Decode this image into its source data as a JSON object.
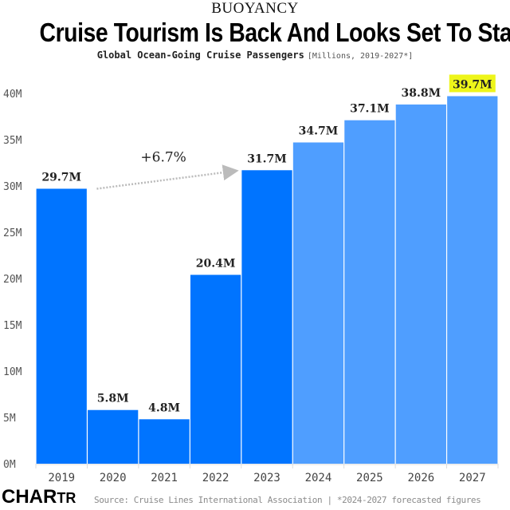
{
  "header": {
    "kicker": "BUOYANCY",
    "title": "Cruise Tourism Is Back And Looks Set To Stay",
    "subtitle_main": "Global Ocean-Going Cruise Passengers",
    "subtitle_unit": "[Millions, 2019-2027*]"
  },
  "chart_data": {
    "type": "bar",
    "title": "Cruise Tourism Is Back And Looks Set To Stay",
    "subtitle": "Global Ocean-Going Cruise Passengers [Millions, 2019-2027*]",
    "xlabel": "",
    "ylabel": "",
    "categories": [
      "2019",
      "2020",
      "2021",
      "2022",
      "2023",
      "2024",
      "2025",
      "2026",
      "2027"
    ],
    "values": [
      29.7,
      5.8,
      4.8,
      20.4,
      31.7,
      34.7,
      37.1,
      38.8,
      39.7
    ],
    "value_labels": [
      "29.7M",
      "5.8M",
      "4.8M",
      "20.4M",
      "31.7M",
      "34.7M",
      "37.1M",
      "38.8M",
      "39.7M"
    ],
    "forecast": [
      false,
      false,
      false,
      false,
      false,
      true,
      true,
      true,
      true
    ],
    "highlight_index": 8,
    "ylim": [
      0,
      40
    ],
    "yticks": [
      0,
      5,
      10,
      15,
      20,
      25,
      30,
      35,
      40
    ],
    "ytick_labels": [
      "0M",
      "5M",
      "10M",
      "15M",
      "20M",
      "25M",
      "30M",
      "35M",
      "40M"
    ],
    "grid": false,
    "annotation": {
      "text": "+6.7%",
      "from": "2019",
      "to": "2023"
    },
    "colors": {
      "actual": "#0074FF",
      "forecast": "#4F9EFF",
      "highlight_bg": "#EEF51A",
      "label_text": "#222222",
      "axis_text": "#555555",
      "arrow": "#BBBBBB"
    }
  },
  "footer": {
    "logo_big": "CHA",
    "logo_mid": "R",
    "logo_small": "TR",
    "source": "Source: Cruise Lines International Association | *2024-2027 forecasted figures"
  }
}
